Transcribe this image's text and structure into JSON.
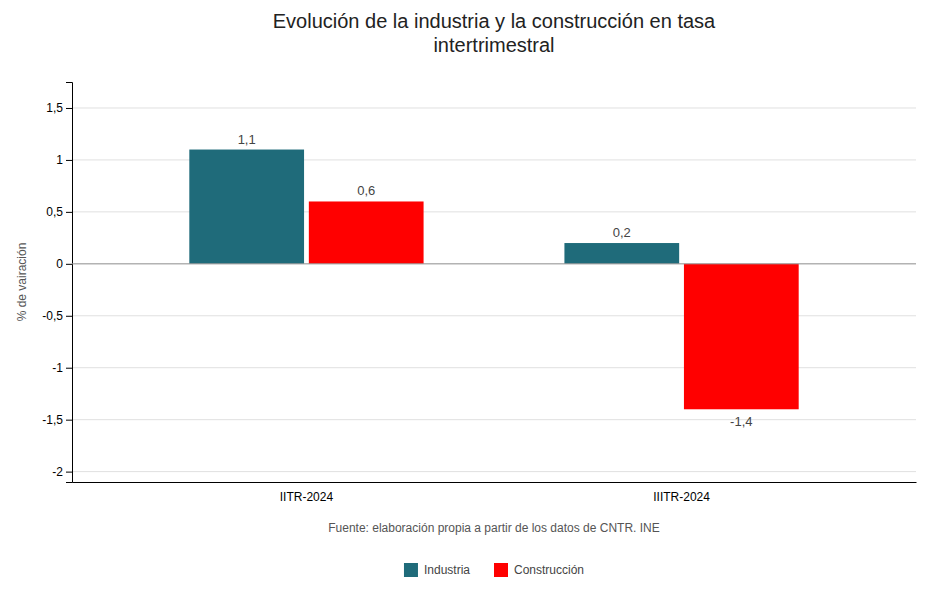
{
  "chart_data": {
    "type": "bar",
    "title": "Evolución de la industria y la construcción en tasa\nintertrimestral",
    "y_label": "% de vairación",
    "annotations": [
      "Fuente: elaboración propia a partir de los datos de CNTR. INE"
    ],
    "categories": [
      "IITR-2024",
      "IIITR-2024"
    ],
    "series": [
      {
        "name": "Industria",
        "color": "#1f6b7a",
        "values": [
          1.1,
          0.2
        ],
        "value_labels": [
          "1,1",
          "0,2"
        ]
      },
      {
        "name": "Construcción",
        "color": "#ff0000",
        "values": [
          0.6,
          -1.4
        ],
        "value_labels": [
          "0,6",
          "-1,4"
        ]
      }
    ],
    "ylim": [
      -2.1,
      1.75
    ],
    "yticks": [
      -2,
      {
        "value": -1.5,
        "label": "-1,5"
      },
      -1,
      {
        "value": -0.5,
        "label": "-0,5"
      },
      0,
      {
        "value": 0.5,
        "label": "0,5"
      },
      1,
      {
        "value": 1.5,
        "label": "1,5"
      }
    ],
    "grid": true,
    "data_labels": true,
    "legend": "bottom"
  }
}
